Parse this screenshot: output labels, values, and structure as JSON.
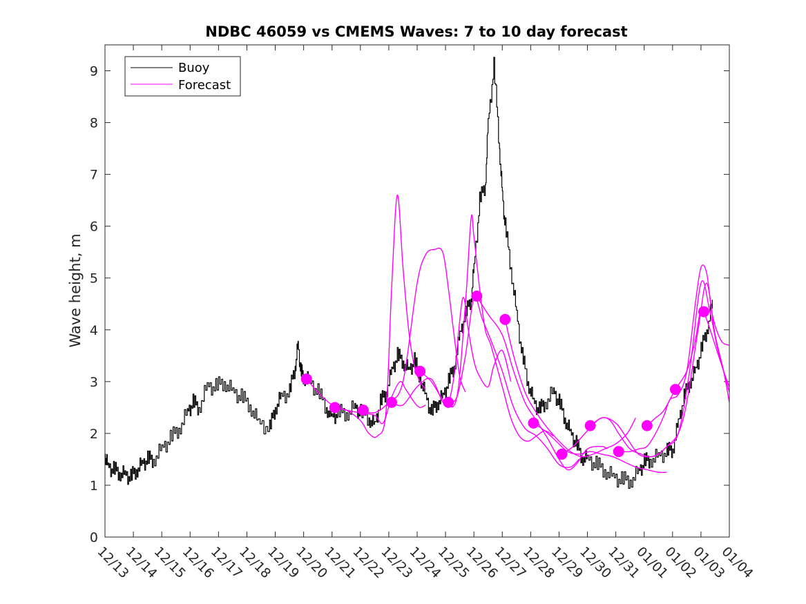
{
  "chart_data": {
    "type": "line",
    "title": "NDBC 46059 vs CMEMS Waves: 7 to 10 day forecast",
    "xlabel": "",
    "ylabel": "Wave height, m",
    "ylim": [
      0,
      9.5
    ],
    "xlim": [
      0,
      22
    ],
    "y_ticks": [
      0,
      1,
      2,
      3,
      4,
      5,
      6,
      7,
      8,
      9
    ],
    "x_tick_labels": [
      "12/13",
      "12/14",
      "12/15",
      "12/16",
      "12/17",
      "12/18",
      "12/19",
      "12/20",
      "12/21",
      "12/22",
      "12/23",
      "12/24",
      "12/25",
      "12/26",
      "12/27",
      "12/28",
      "12/29",
      "12/30",
      "12/31",
      "01/01",
      "01/02",
      "01/03",
      "01/04"
    ],
    "legend": {
      "location": "top-left",
      "entries": [
        "Buoy",
        "Forecast"
      ]
    },
    "colors": {
      "buoy": "#000000",
      "forecast": "#ff00ff",
      "axes": "#262626"
    },
    "series": [
      {
        "name": "Buoy",
        "x": [
          0,
          0.1,
          0.3,
          0.5,
          0.7,
          0.9,
          1.1,
          1.3,
          1.5,
          1.7,
          2.0,
          2.3,
          2.6,
          2.9,
          3.1,
          3.3,
          3.6,
          3.9,
          4.2,
          4.5,
          4.8,
          5.1,
          5.4,
          5.8,
          6.0,
          6.2,
          6.5,
          6.7,
          6.8,
          6.9,
          7.0,
          7.2,
          7.5,
          7.8,
          8.0,
          8.2,
          8.5,
          8.8,
          9.0,
          9.3,
          9.5,
          9.7,
          9.9,
          10.1,
          10.3,
          10.5,
          10.7,
          10.9,
          11.1,
          11.3,
          11.5,
          11.7,
          11.9,
          12.1,
          12.3,
          12.5,
          12.7,
          12.9,
          13.0,
          13.2,
          13.4,
          13.5,
          13.7,
          13.9,
          14.0,
          14.1,
          14.3,
          14.5,
          14.7,
          14.9,
          15.1,
          15.3,
          15.5,
          15.8,
          16.0,
          16.2,
          16.4,
          16.6,
          16.8,
          17.0,
          17.3,
          17.6,
          17.9,
          18.2,
          18.5,
          18.8,
          19.0,
          19.2,
          19.5,
          19.8,
          20.0,
          20.2,
          20.4,
          20.6,
          20.8,
          21.0,
          21.2,
          21.4
        ],
        "values": [
          1.6,
          1.35,
          1.3,
          1.25,
          1.2,
          1.15,
          1.3,
          1.4,
          1.5,
          1.5,
          1.7,
          1.9,
          2.1,
          2.4,
          2.6,
          2.5,
          2.9,
          2.9,
          3.0,
          2.8,
          2.7,
          2.55,
          2.2,
          2.1,
          2.5,
          2.7,
          2.8,
          3.3,
          3.7,
          3.2,
          3.1,
          3.0,
          2.8,
          2.5,
          2.3,
          2.4,
          2.4,
          2.5,
          2.4,
          2.3,
          2.15,
          2.6,
          2.8,
          3.2,
          3.5,
          3.4,
          3.2,
          3.4,
          3.1,
          2.7,
          2.4,
          2.6,
          2.7,
          3.0,
          3.3,
          3.9,
          4.3,
          4.6,
          5.2,
          6.5,
          6.8,
          8.0,
          9.1,
          7.5,
          6.6,
          6.0,
          5.2,
          4.3,
          3.5,
          3.0,
          2.6,
          2.45,
          2.6,
          2.8,
          2.6,
          2.3,
          2.0,
          1.8,
          1.55,
          1.5,
          1.4,
          1.3,
          1.15,
          1.1,
          1.1,
          1.25,
          1.45,
          1.5,
          1.55,
          1.65,
          1.7,
          2.2,
          2.7,
          3.0,
          3.2,
          3.6,
          4.0,
          4.5
        ]
      },
      {
        "name": "Forecast",
        "x": [
          7.1,
          7.5,
          8.0,
          8.5,
          9.0,
          9.5,
          9.8,
          10.1,
          10.4,
          10.6,
          10.9,
          11.1,
          11.3
        ],
        "values": [
          3.05,
          2.8,
          2.55,
          2.45,
          2.4,
          2.35,
          2.2,
          2.7,
          3.0,
          2.85,
          2.6,
          2.5,
          2.55
        ]
      },
      {
        "name": "Forecast",
        "x": [
          8.1,
          8.5,
          9.0,
          9.3,
          9.6,
          9.9,
          10.1,
          10.3,
          10.5,
          10.7,
          10.9,
          11.1,
          11.3
        ],
        "values": [
          2.5,
          2.45,
          2.25,
          2.0,
          1.95,
          2.4,
          4.8,
          6.6,
          5.2,
          4.0,
          3.3,
          3.0,
          2.85
        ]
      },
      {
        "name": "Forecast",
        "x": [
          9.1,
          9.5,
          10.0,
          10.5,
          11.0,
          11.3,
          11.6,
          11.9,
          12.1,
          12.3,
          12.5,
          12.7
        ],
        "values": [
          2.45,
          2.4,
          2.6,
          3.0,
          4.9,
          5.45,
          5.55,
          5.5,
          4.8,
          3.9,
          3.1,
          2.8
        ]
      },
      {
        "name": "Forecast",
        "x": [
          10.1,
          10.5,
          11.0,
          11.5,
          12.0,
          12.3,
          12.6,
          12.8,
          13.0,
          13.2,
          13.5,
          13.7,
          14.0,
          14.3
        ],
        "values": [
          2.6,
          2.55,
          2.9,
          3.05,
          2.55,
          3.1,
          4.6,
          4.0,
          3.4,
          3.1,
          2.9,
          3.3,
          3.6,
          3.0
        ]
      },
      {
        "name": "Forecast",
        "x": [
          11.1,
          11.5,
          12.0,
          12.4,
          12.7,
          12.9,
          13.0,
          13.2,
          13.4,
          13.6,
          14.0,
          14.3,
          14.6,
          14.9,
          15.2,
          15.5,
          15.8
        ],
        "values": [
          3.2,
          3.0,
          2.6,
          2.7,
          4.5,
          6.15,
          5.8,
          4.8,
          4.0,
          3.7,
          2.9,
          2.3,
          1.95,
          1.85,
          1.95,
          2.05,
          1.95
        ]
      },
      {
        "name": "Forecast",
        "x": [
          12.1,
          12.4,
          12.7,
          13.0,
          13.3,
          13.6,
          14.0,
          14.4,
          14.8,
          15.2,
          15.6,
          16.0,
          16.4,
          16.7
        ],
        "values": [
          2.6,
          2.7,
          3.5,
          4.6,
          4.2,
          3.8,
          3.2,
          2.5,
          2.1,
          1.95,
          1.7,
          1.4,
          1.35,
          1.5
        ]
      },
      {
        "name": "Forecast",
        "x": [
          13.1,
          13.5,
          14.0,
          14.4,
          14.8,
          15.2,
          15.6,
          16.0,
          16.3,
          16.6,
          17.0,
          17.5,
          17.7
        ],
        "values": [
          4.65,
          4.3,
          3.9,
          3.2,
          2.6,
          2.25,
          1.9,
          1.5,
          1.3,
          1.4,
          1.7,
          1.75,
          1.7
        ]
      },
      {
        "name": "Forecast",
        "x": [
          14.1,
          14.4,
          14.8,
          15.2,
          15.6,
          16.0,
          16.4,
          16.8,
          17.2,
          17.6,
          18.0,
          18.4,
          18.7
        ],
        "values": [
          4.2,
          3.5,
          2.8,
          2.4,
          2.1,
          1.85,
          1.65,
          1.55,
          1.6,
          1.7,
          1.8,
          2.0,
          2.3
        ]
      },
      {
        "name": "Forecast",
        "x": [
          15.1,
          15.5,
          15.9,
          16.3,
          16.7,
          17.1,
          17.5,
          17.9,
          18.3,
          18.7,
          19.1,
          19.5,
          19.8
        ],
        "values": [
          2.2,
          2.05,
          1.85,
          1.65,
          1.6,
          1.65,
          1.6,
          1.55,
          1.45,
          1.35,
          1.3,
          1.25,
          1.25
        ]
      },
      {
        "name": "Forecast",
        "x": [
          16.1,
          16.5,
          17.0,
          17.5,
          18.0,
          18.4,
          18.8,
          19.2,
          19.5,
          19.8,
          20.2,
          20.6,
          21.0,
          21.3,
          21.6,
          22.0
        ],
        "values": [
          1.6,
          1.75,
          2.05,
          2.3,
          2.2,
          1.9,
          1.6,
          1.55,
          1.6,
          1.75,
          2.0,
          3.2,
          4.9,
          4.4,
          3.6,
          2.8
        ]
      },
      {
        "name": "Forecast",
        "x": [
          17.1,
          17.5,
          17.8,
          18.1,
          18.5,
          18.9,
          19.2,
          19.5,
          19.8,
          20.2,
          20.5,
          20.9,
          21.2,
          21.5,
          21.8,
          22.0
        ],
        "values": [
          2.15,
          2.3,
          2.25,
          2.0,
          1.7,
          1.6,
          1.55,
          1.6,
          1.75,
          2.0,
          2.6,
          4.0,
          4.9,
          3.9,
          3.2,
          2.6
        ]
      },
      {
        "name": "Forecast",
        "x": [
          18.1,
          18.5,
          18.8,
          19.1,
          19.4,
          19.7,
          19.9,
          20.2,
          20.5,
          20.8,
          21.0,
          21.2,
          21.4,
          21.7,
          22.0
        ],
        "values": [
          1.65,
          1.65,
          1.7,
          1.75,
          2.0,
          2.35,
          2.65,
          2.75,
          3.2,
          4.5,
          5.2,
          5.1,
          4.3,
          3.8,
          3.7
        ]
      },
      {
        "name": "Forecast",
        "x": [
          19.1,
          19.4,
          19.7,
          20.1,
          20.5,
          20.8,
          21.0,
          21.2,
          21.5,
          21.8,
          22.0
        ],
        "values": [
          2.15,
          2.3,
          2.45,
          2.85,
          3.2,
          3.8,
          4.4,
          4.2,
          3.7,
          3.2,
          2.9
        ]
      }
    ],
    "forecast_markers": {
      "x": [
        7.1,
        8.1,
        9.1,
        10.1,
        11.1,
        12.1,
        13.1,
        14.1,
        15.1,
        16.1,
        17.1,
        18.1,
        19.1,
        20.1,
        21.1
      ],
      "values": [
        3.05,
        2.5,
        2.45,
        2.6,
        3.2,
        2.6,
        4.65,
        4.2,
        2.2,
        1.6,
        2.15,
        1.65,
        2.15,
        2.85,
        4.35
      ]
    }
  }
}
